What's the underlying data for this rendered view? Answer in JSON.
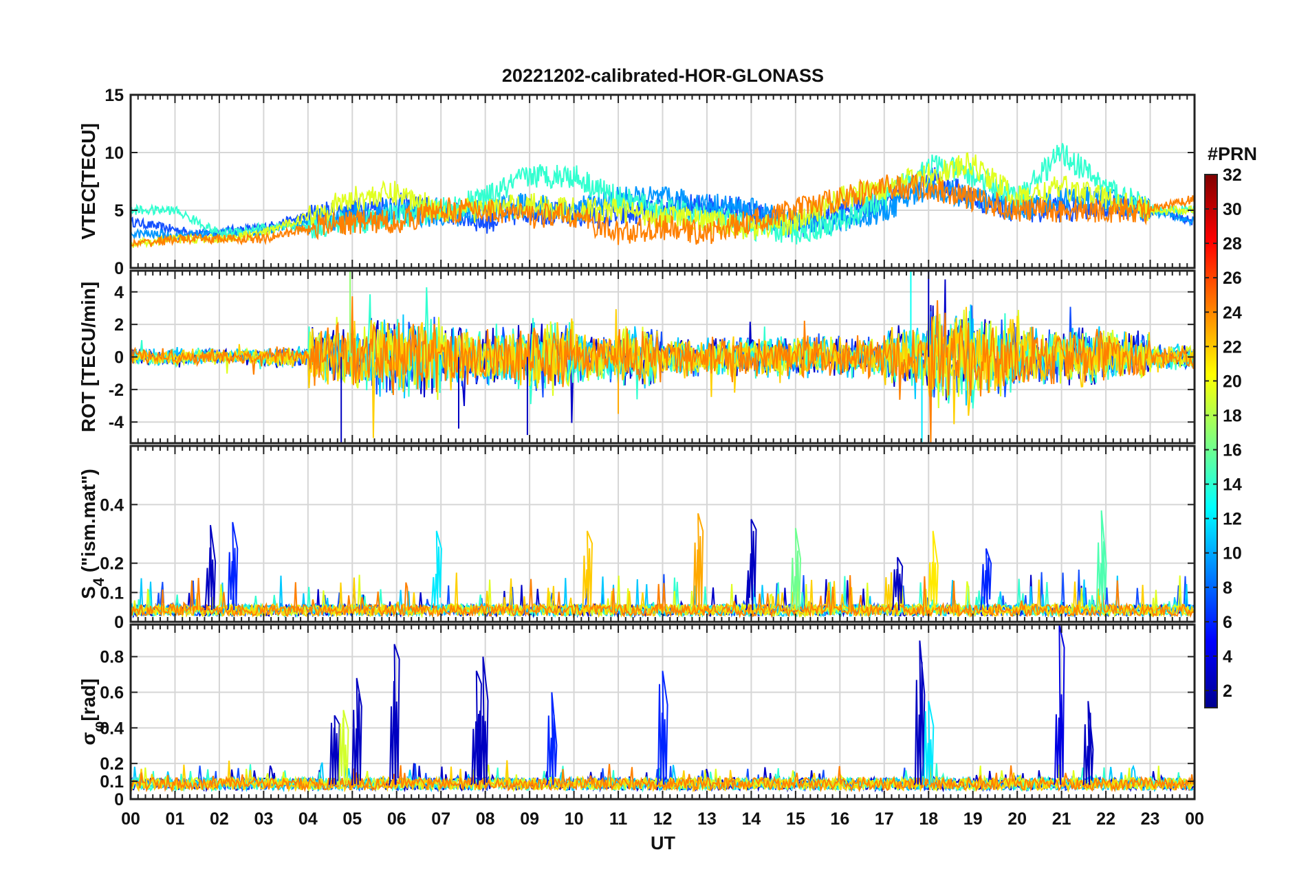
{
  "figure": {
    "title": "20221202-calibrated-HOR-GLONASS",
    "xlabel": "UT",
    "x_ticks": [
      "00",
      "01",
      "02",
      "03",
      "04",
      "05",
      "06",
      "07",
      "08",
      "09",
      "10",
      "11",
      "12",
      "13",
      "14",
      "15",
      "16",
      "17",
      "18",
      "19",
      "20",
      "21",
      "22",
      "23",
      "00"
    ]
  },
  "colorbar": {
    "title": "#PRN",
    "ticks": [
      "2",
      "4",
      "6",
      "8",
      "10",
      "12",
      "14",
      "16",
      "18",
      "20",
      "22",
      "24",
      "26",
      "28",
      "30",
      "32"
    ],
    "range": [
      1,
      32
    ],
    "colormap": "jet"
  },
  "chart_data": [
    {
      "type": "line",
      "panel": "VTEC",
      "ylabel": "VTEC[TECU]",
      "x_unit": "hours UT",
      "xlim": [
        0,
        24
      ],
      "ylim": [
        0,
        15
      ],
      "y_ticks": [
        "0",
        "5",
        "10",
        "15"
      ],
      "y_tick_values": [
        0,
        5,
        10,
        15
      ],
      "grid": true,
      "series": [
        {
          "prn": 3,
          "color": "#1450ff",
          "x": [
            0,
            1.5,
            3,
            4,
            5,
            6,
            7,
            8,
            9,
            10,
            11,
            12,
            13,
            14,
            15,
            16,
            17,
            18,
            19,
            20,
            21,
            22,
            23,
            24
          ],
          "values": [
            4,
            3,
            3.5,
            4.5,
            5,
            5.5,
            5,
            4,
            5,
            4.5,
            4.5,
            5,
            5.5,
            5,
            3.5,
            5,
            6,
            8,
            6,
            5,
            5,
            5.5,
            5,
            4
          ]
        },
        {
          "prn": 9,
          "color": "#0096ff",
          "x": [
            0,
            1,
            2,
            3,
            4,
            5,
            6,
            7,
            8,
            9,
            10,
            11,
            12,
            13,
            14,
            15,
            16,
            17,
            18,
            19,
            20,
            21,
            22,
            23,
            24
          ],
          "values": [
            3,
            2.8,
            3,
            3.2,
            4,
            4.5,
            5,
            4.5,
            5,
            5.5,
            5,
            6,
            6,
            5.5,
            5,
            4,
            4,
            5,
            7,
            6,
            5,
            6,
            6,
            5,
            4
          ]
        },
        {
          "prn": 13,
          "color": "#32ffd0",
          "x": [
            0,
            1,
            2,
            3,
            4,
            5,
            6,
            7,
            8,
            9,
            10,
            11,
            12,
            13,
            14,
            15,
            16,
            17,
            18,
            19,
            20,
            21,
            22,
            23,
            24
          ],
          "values": [
            5,
            5,
            3,
            3.5,
            3.5,
            4,
            4.5,
            5,
            6,
            8,
            8,
            6,
            5,
            4.5,
            3.5,
            3,
            4,
            6,
            9,
            8,
            6,
            10,
            7,
            5,
            5
          ]
        },
        {
          "prn": 19,
          "color": "#e0ff20",
          "x": [
            0,
            1,
            2,
            3,
            4,
            5,
            6,
            7,
            8,
            9,
            10,
            11,
            12,
            13,
            14,
            15,
            16,
            17,
            18,
            19,
            20,
            21,
            22,
            23,
            24
          ],
          "values": [
            2,
            2.5,
            2.5,
            3,
            4.5,
            6,
            6.5,
            5,
            5,
            5.5,
            5,
            5,
            4.5,
            4,
            3.5,
            4,
            6,
            7,
            8,
            9,
            6,
            7,
            6,
            5,
            5
          ]
        },
        {
          "prn": 23,
          "color": "#ff8000",
          "x": [
            0,
            1,
            2,
            3,
            4,
            5,
            6,
            7,
            8,
            9,
            10,
            11,
            12,
            13,
            14,
            15,
            16,
            17,
            18,
            19,
            20,
            21,
            22,
            23,
            24
          ],
          "values": [
            2,
            2.5,
            2.5,
            2.5,
            3.5,
            4,
            4,
            5,
            5,
            4.5,
            4.5,
            3,
            3.5,
            3,
            4,
            5,
            6,
            7,
            7,
            6,
            5,
            5,
            5,
            5,
            6
          ]
        }
      ]
    },
    {
      "type": "line",
      "panel": "ROT",
      "ylabel": "ROT [TECU/min]",
      "x_unit": "hours UT",
      "xlim": [
        0,
        24
      ],
      "ylim": [
        -5.3,
        5.3
      ],
      "y_ticks": [
        "-4",
        "-2",
        "0",
        "2",
        "4"
      ],
      "y_tick_values": [
        -4,
        -2,
        0,
        2,
        4
      ],
      "grid": true,
      "noise_amplitude_by_hour": [
        0.4,
        0.4,
        0.4,
        0.5,
        1.5,
        2,
        2,
        1.5,
        1.5,
        1.8,
        1.2,
        1.5,
        1,
        1,
        1,
        1,
        1,
        1.5,
        2.5,
        2,
        1.5,
        1.5,
        1.2,
        0.6,
        0.4
      ],
      "peaks": [
        {
          "x": 4.75,
          "value": -5.3,
          "prn": 3
        },
        {
          "x": 4.95,
          "value": 5.3,
          "prn": 17
        },
        {
          "x": 17.6,
          "value": 5.3,
          "prn": 13
        },
        {
          "x": 17.85,
          "value": -5.3,
          "prn": 12
        },
        {
          "x": 18.0,
          "value": 5.3,
          "prn": 3
        },
        {
          "x": 8.95,
          "value": -4.8,
          "prn": 3
        },
        {
          "x": 7.4,
          "value": -4.4,
          "prn": 3
        },
        {
          "x": 11.0,
          "value": -3.5,
          "prn": 23
        }
      ],
      "series_colors": [
        "#0000c8",
        "#1450ff",
        "#00c8ff",
        "#32ffd0",
        "#e0ff20",
        "#ffd000",
        "#ff8000"
      ]
    },
    {
      "type": "line",
      "panel": "S4",
      "ylabel": "S_4 (\"ism.mat\")",
      "x_unit": "hours UT",
      "xlim": [
        0,
        24
      ],
      "ylim": [
        0,
        0.6
      ],
      "y_ticks": [
        "0",
        "0.1",
        "0.2",
        "0.4"
      ],
      "y_tick_values": [
        0,
        0.1,
        0.2,
        0.4
      ],
      "grid": true,
      "peaks": [
        {
          "x": 1.8,
          "value": 0.33,
          "prn": 3
        },
        {
          "x": 2.3,
          "value": 0.34,
          "prn": 6
        },
        {
          "x": 6.9,
          "value": 0.31,
          "prn": 12
        },
        {
          "x": 10.3,
          "value": 0.31,
          "prn": 22
        },
        {
          "x": 12.8,
          "value": 0.37,
          "prn": 23
        },
        {
          "x": 14.0,
          "value": 0.35,
          "prn": 3
        },
        {
          "x": 15.0,
          "value": 0.32,
          "prn": 16
        },
        {
          "x": 18.1,
          "value": 0.31,
          "prn": 21
        },
        {
          "x": 21.9,
          "value": 0.38,
          "prn": 15
        },
        {
          "x": 17.3,
          "value": 0.22,
          "prn": 3
        },
        {
          "x": 19.3,
          "value": 0.25,
          "prn": 6
        }
      ],
      "series_colors": [
        "#0000c8",
        "#1450ff",
        "#00c8ff",
        "#32ffd0",
        "#e0ff20",
        "#ffd000",
        "#ff8000"
      ]
    },
    {
      "type": "line",
      "panel": "sigma_phi",
      "ylabel": "σ_φ[rad]",
      "x_unit": "hours UT",
      "xlim": [
        0,
        24
      ],
      "ylim": [
        0,
        0.98
      ],
      "y_ticks": [
        "0",
        "0.1",
        "0.2",
        "0.4",
        "0.6",
        "0.8"
      ],
      "y_tick_values": [
        0,
        0.1,
        0.2,
        0.4,
        0.6,
        0.8
      ],
      "grid": true,
      "peaks": [
        {
          "x": 4.6,
          "value": 0.47,
          "prn": 3
        },
        {
          "x": 4.8,
          "value": 0.5,
          "prn": 19
        },
        {
          "x": 5.1,
          "value": 0.68,
          "prn": 3
        },
        {
          "x": 5.95,
          "value": 0.87,
          "prn": 3
        },
        {
          "x": 7.8,
          "value": 0.72,
          "prn": 3
        },
        {
          "x": 7.95,
          "value": 0.8,
          "prn": 3
        },
        {
          "x": 9.5,
          "value": 0.6,
          "prn": 6
        },
        {
          "x": 12.0,
          "value": 0.72,
          "prn": 6
        },
        {
          "x": 17.8,
          "value": 0.89,
          "prn": 3
        },
        {
          "x": 18.0,
          "value": 0.55,
          "prn": 12
        },
        {
          "x": 20.95,
          "value": 0.98,
          "prn": 4
        },
        {
          "x": 21.6,
          "value": 0.55,
          "prn": 3
        }
      ],
      "series_colors": [
        "#0000c8",
        "#1450ff",
        "#00c8ff",
        "#32ffd0",
        "#e0ff20",
        "#ffd000",
        "#ff8000"
      ]
    }
  ]
}
